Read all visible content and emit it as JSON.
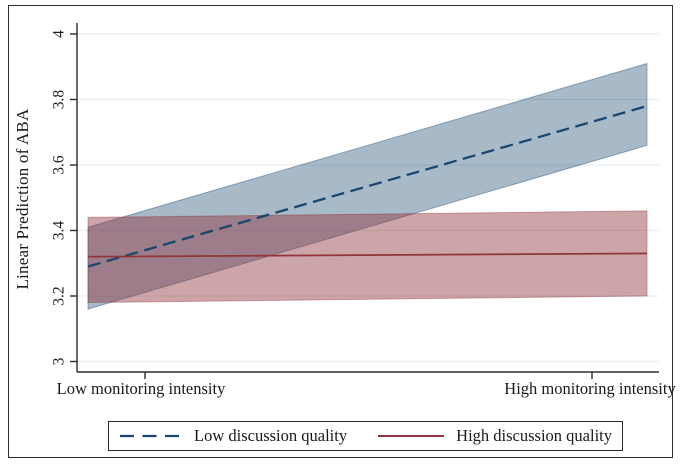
{
  "chart_data": {
    "type": "line",
    "title": "",
    "xlabel": "",
    "ylabel": "Linear Prediction of ABA",
    "x_tick_labels": [
      "Low monitoring intensity",
      "High monitoring intensity"
    ],
    "y_ticks": [
      3,
      3.2,
      3.4,
      3.6,
      3.8,
      4
    ],
    "y_tick_labels": [
      "3",
      "3.2",
      "3.4",
      "3.6",
      "3.8",
      "4"
    ],
    "ylim": [
      3,
      4
    ],
    "grid": true,
    "legend_position": "bottom",
    "series": [
      {
        "name": "Low discussion quality",
        "style": "dashed",
        "color": "#1a476f",
        "band_color": "rgba(26,71,111,0.38)",
        "values": [
          3.29,
          3.78
        ],
        "ci_lower": [
          3.16,
          3.66
        ],
        "ci_upper": [
          3.41,
          3.91
        ]
      },
      {
        "name": "High discussion quality",
        "style": "solid",
        "color": "#90353b",
        "band_color": "rgba(144,53,59,0.45)",
        "values": [
          3.32,
          3.33
        ],
        "ci_lower": [
          3.18,
          3.2
        ],
        "ci_upper": [
          3.44,
          3.46
        ]
      }
    ],
    "colors": {
      "gridline": "#e6eef0",
      "axis": "#2b2b2b",
      "tick_label": "#1a1a1a"
    }
  }
}
